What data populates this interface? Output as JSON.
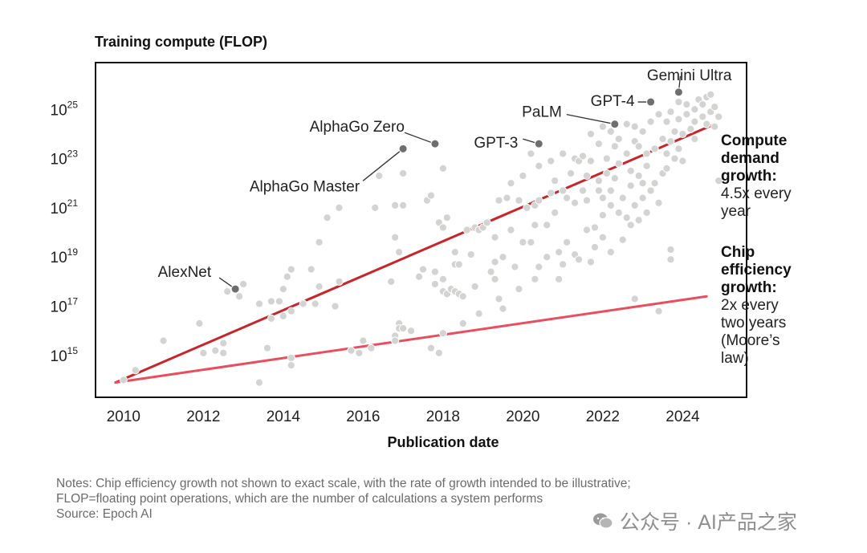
{
  "chart_data": {
    "type": "scatter",
    "title": "Training compute (FLOP)",
    "xlabel": "Publication date",
    "ylabel": "Training compute (FLOP)",
    "xlim": [
      2009.3,
      2025.6
    ],
    "ylim_log10": [
      13.3,
      26.9
    ],
    "x_ticks": [
      {
        "value": 2010,
        "label": "2010"
      },
      {
        "value": 2012,
        "label": "2012"
      },
      {
        "value": 2014,
        "label": "2014"
      },
      {
        "value": 2016,
        "label": "2016"
      },
      {
        "value": 2018,
        "label": "2018"
      },
      {
        "value": 2020,
        "label": "2020"
      },
      {
        "value": 2022,
        "label": "2022"
      },
      {
        "value": 2024,
        "label": "2024"
      }
    ],
    "y_ticks": [
      {
        "exp": 15,
        "base": "10",
        "sup": "15"
      },
      {
        "exp": 17,
        "base": "10",
        "sup": "17"
      },
      {
        "exp": 19,
        "base": "10",
        "sup": "19"
      },
      {
        "exp": 21,
        "base": "10",
        "sup": "21"
      },
      {
        "exp": 23,
        "base": "10",
        "sup": "23"
      },
      {
        "exp": 25,
        "base": "10",
        "sup": "25"
      }
    ],
    "highlighted_models": [
      {
        "name": "AlexNet",
        "x": 2012.8,
        "y_log10": 17.7,
        "label_side": "left"
      },
      {
        "name": "AlphaGo Master",
        "x": 2017.0,
        "y_log10": 23.4,
        "label_side": "left"
      },
      {
        "name": "AlphaGo Zero",
        "x": 2017.8,
        "y_log10": 23.6,
        "label_side": "top"
      },
      {
        "name": "GPT-3",
        "x": 2020.4,
        "y_log10": 23.6,
        "label_side": "left"
      },
      {
        "name": "PaLM",
        "x": 2022.3,
        "y_log10": 24.4,
        "label_side": "left"
      },
      {
        "name": "GPT-4",
        "x": 2023.2,
        "y_log10": 25.3,
        "label_side": "left"
      },
      {
        "name": "Gemini Ultra",
        "x": 2023.9,
        "y_log10": 25.7,
        "label_side": "top"
      }
    ],
    "trend_lines": [
      {
        "name": "Compute demand growth",
        "x": [
          2009.8,
          2024.8
        ],
        "y_log10": [
          13.9,
          24.4
        ],
        "color": "#c8252b"
      },
      {
        "name": "Chip efficiency growth",
        "x": [
          2009.8,
          2024.6
        ],
        "y_log10": [
          13.9,
          17.4
        ],
        "color": "#ea4d5d"
      }
    ],
    "points": [
      [
        2010.0,
        14.0
      ],
      [
        2010.3,
        14.4
      ],
      [
        2011.0,
        15.6
      ],
      [
        2011.9,
        16.3
      ],
      [
        2012.0,
        15.1
      ],
      [
        2012.3,
        15.2
      ],
      [
        2012.5,
        15.5
      ],
      [
        2012.5,
        15.1
      ],
      [
        2012.6,
        17.6
      ],
      [
        2012.9,
        17.4
      ],
      [
        2013.0,
        17.9
      ],
      [
        2013.4,
        17.1
      ],
      [
        2013.4,
        13.9
      ],
      [
        2013.6,
        15.3
      ],
      [
        2013.7,
        16.5
      ],
      [
        2013.7,
        17.2
      ],
      [
        2013.9,
        17.2
      ],
      [
        2014.0,
        16.6
      ],
      [
        2014.0,
        17.7
      ],
      [
        2014.1,
        18.2
      ],
      [
        2014.2,
        16.8
      ],
      [
        2014.2,
        14.9
      ],
      [
        2014.2,
        14.6
      ],
      [
        2014.2,
        18.5
      ],
      [
        2014.5,
        17.1
      ],
      [
        2014.7,
        18.5
      ],
      [
        2014.8,
        17.1
      ],
      [
        2014.9,
        17.8
      ],
      [
        2014.9,
        19.6
      ],
      [
        2015.1,
        20.6
      ],
      [
        2015.3,
        17.0
      ],
      [
        2015.4,
        18.0
      ],
      [
        2015.4,
        21.0
      ],
      [
        2015.7,
        15.2
      ],
      [
        2015.9,
        15.1
      ],
      [
        2016.0,
        15.6
      ],
      [
        2016.2,
        15.3
      ],
      [
        2016.3,
        21.0
      ],
      [
        2016.4,
        22.3
      ],
      [
        2016.8,
        21.1
      ],
      [
        2016.8,
        19.8
      ],
      [
        2016.8,
        15.8
      ],
      [
        2016.9,
        16.3
      ],
      [
        2016.9,
        19.2
      ],
      [
        2017.0,
        21.1
      ],
      [
        2016.9,
        16.1
      ],
      [
        2017.0,
        22.4
      ],
      [
        2017.0,
        16.1
      ],
      [
        2017.2,
        16.0
      ],
      [
        2017.5,
        18.5
      ],
      [
        2017.6,
        21.3
      ],
      [
        2017.7,
        15.3
      ],
      [
        2017.7,
        21.5
      ],
      [
        2017.8,
        17.9
      ],
      [
        2017.8,
        18.4
      ],
      [
        2017.9,
        20.4
      ],
      [
        2018.0,
        20.2
      ],
      [
        2018.0,
        22.6
      ],
      [
        2018.0,
        15.9
      ],
      [
        2018.0,
        18.1
      ],
      [
        2018.0,
        17.6
      ],
      [
        2018.1,
        17.5
      ],
      [
        2018.1,
        20.6
      ],
      [
        2018.2,
        17.7
      ],
      [
        2018.3,
        19.2
      ],
      [
        2018.3,
        18.7
      ],
      [
        2018.3,
        17.6
      ],
      [
        2018.4,
        17.5
      ],
      [
        2018.4,
        18.7
      ],
      [
        2018.5,
        17.4
      ],
      [
        2018.6,
        20.1
      ],
      [
        2018.7,
        19.1
      ],
      [
        2018.8,
        17.8
      ],
      [
        2018.8,
        20.2
      ],
      [
        2018.9,
        16.7
      ],
      [
        2018.9,
        20.1
      ],
      [
        2019.0,
        20.2
      ],
      [
        2019.1,
        20.4
      ],
      [
        2019.2,
        18.4
      ],
      [
        2019.3,
        19.8
      ],
      [
        2019.3,
        18.1
      ],
      [
        2019.3,
        18.8
      ],
      [
        2019.4,
        21.3
      ],
      [
        2019.4,
        17.3
      ],
      [
        2019.5,
        19.0
      ],
      [
        2019.6,
        21.4
      ],
      [
        2019.7,
        20.1
      ],
      [
        2019.7,
        22.0
      ],
      [
        2019.8,
        18.6
      ],
      [
        2019.9,
        21.3
      ],
      [
        2019.9,
        17.7
      ],
      [
        2020.0,
        19.6
      ],
      [
        2020.0,
        22.3
      ],
      [
        2020.1,
        21.0
      ],
      [
        2020.2,
        19.6
      ],
      [
        2020.2,
        23.2
      ],
      [
        2020.3,
        20.3
      ],
      [
        2020.3,
        21.1
      ],
      [
        2020.3,
        18.1
      ],
      [
        2020.4,
        21.3
      ],
      [
        2020.4,
        22.7
      ],
      [
        2020.4,
        18.6
      ],
      [
        2020.6,
        19.0
      ],
      [
        2020.6,
        20.3
      ],
      [
        2020.7,
        21.6
      ],
      [
        2020.7,
        22.9
      ],
      [
        2020.8,
        20.8
      ],
      [
        2020.8,
        22.1
      ],
      [
        2020.9,
        19.2
      ],
      [
        2020.9,
        18.1
      ],
      [
        2021.0,
        23.2
      ],
      [
        2021.0,
        21.7
      ],
      [
        2021.0,
        18.7
      ],
      [
        2021.1,
        19.6
      ],
      [
        2021.1,
        21.4
      ],
      [
        2021.2,
        22.4
      ],
      [
        2021.3,
        23.0
      ],
      [
        2021.3,
        19.1
      ],
      [
        2021.3,
        21.2
      ],
      [
        2021.4,
        22.9
      ],
      [
        2021.4,
        18.9
      ],
      [
        2021.5,
        21.7
      ],
      [
        2021.5,
        23.1
      ],
      [
        2021.6,
        20.1
      ],
      [
        2021.6,
        22.3
      ],
      [
        2021.6,
        21.3
      ],
      [
        2021.7,
        18.8
      ],
      [
        2021.7,
        24.0
      ],
      [
        2021.7,
        22.9
      ],
      [
        2021.8,
        20.2
      ],
      [
        2021.8,
        19.4
      ],
      [
        2021.9,
        21.7
      ],
      [
        2021.9,
        23.6
      ],
      [
        2021.9,
        22.1
      ],
      [
        2022.0,
        24.3
      ],
      [
        2022.0,
        21.4
      ],
      [
        2022.0,
        19.8
      ],
      [
        2022.0,
        20.7
      ],
      [
        2022.1,
        23.0
      ],
      [
        2022.1,
        22.4
      ],
      [
        2022.2,
        24.1
      ],
      [
        2022.2,
        21.7
      ],
      [
        2022.2,
        19.2
      ],
      [
        2022.2,
        21.1
      ],
      [
        2022.3,
        23.5
      ],
      [
        2022.3,
        22.2
      ],
      [
        2022.4,
        20.8
      ],
      [
        2022.4,
        23.8
      ],
      [
        2022.4,
        22.8
      ],
      [
        2022.5,
        21.4
      ],
      [
        2022.5,
        19.7
      ],
      [
        2022.6,
        24.4
      ],
      [
        2022.6,
        23.2
      ],
      [
        2022.6,
        20.6
      ],
      [
        2022.7,
        22.5
      ],
      [
        2022.7,
        21.9
      ],
      [
        2022.7,
        20.3
      ],
      [
        2022.8,
        23.7
      ],
      [
        2022.8,
        21.1
      ],
      [
        2022.8,
        24.3
      ],
      [
        2022.9,
        22.3
      ],
      [
        2022.9,
        20.5
      ],
      [
        2022.9,
        23.5
      ],
      [
        2023.0,
        22.0
      ],
      [
        2023.0,
        24.1
      ],
      [
        2023.0,
        21.4
      ],
      [
        2023.1,
        23.2
      ],
      [
        2023.1,
        20.8
      ],
      [
        2023.1,
        22.7
      ],
      [
        2023.2,
        24.5
      ],
      [
        2023.2,
        21.7
      ],
      [
        2023.3,
        23.4
      ],
      [
        2023.3,
        22.0
      ],
      [
        2023.4,
        24.8
      ],
      [
        2023.4,
        21.2
      ],
      [
        2023.5,
        23.8
      ],
      [
        2023.5,
        22.4
      ],
      [
        2023.6,
        24.5
      ],
      [
        2023.6,
        23.2
      ],
      [
        2023.6,
        22.6
      ],
      [
        2023.7,
        24.9
      ],
      [
        2023.7,
        23.7
      ],
      [
        2023.7,
        18.9
      ],
      [
        2023.7,
        19.3
      ],
      [
        2023.8,
        23.0
      ],
      [
        2023.8,
        24.1
      ],
      [
        2023.9,
        24.6
      ],
      [
        2023.9,
        23.4
      ],
      [
        2023.9,
        25.3
      ],
      [
        2024.0,
        24.0
      ],
      [
        2024.0,
        22.9
      ],
      [
        2024.1,
        25.2
      ],
      [
        2024.1,
        24.8
      ],
      [
        2024.2,
        24.2
      ],
      [
        2024.3,
        25.0
      ],
      [
        2024.3,
        23.8
      ],
      [
        2024.3,
        24.5
      ],
      [
        2024.4,
        25.4
      ],
      [
        2024.5,
        24.7
      ],
      [
        2024.5,
        25.2
      ],
      [
        2024.6,
        25.5
      ],
      [
        2024.6,
        24.4
      ],
      [
        2024.7,
        24.9
      ],
      [
        2024.7,
        25.6
      ],
      [
        2024.8,
        24.3
      ],
      [
        2024.8,
        25.1
      ],
      [
        2024.9,
        22.1
      ],
      [
        2024.9,
        24.7
      ],
      [
        2023.4,
        16.8
      ],
      [
        2022.8,
        17.3
      ],
      [
        2019.5,
        16.9
      ],
      [
        2018.5,
        16.3
      ],
      [
        2017.9,
        15.1
      ],
      [
        2016.8,
        15.6
      ],
      [
        2017.4,
        18.2
      ],
      [
        2016.7,
        18.0
      ]
    ],
    "annotations": [
      {
        "title_lines": [
          "Compute",
          "demand",
          "growth:"
        ],
        "body_lines": [
          "4.5x every",
          "year"
        ]
      },
      {
        "title_lines": [
          "Chip",
          "efficiency",
          "growth:"
        ],
        "body_lines": [
          "2x every",
          "two years",
          "(Moore’s",
          "law)"
        ]
      }
    ]
  },
  "notes": {
    "line1": "Notes: Chip efficiency growth not shown to exact scale, with the rate of growth intended to be illustrative;",
    "line2": "FLOP=floating point operations, which are the number of calculations a system performs",
    "line3": "Source: Epoch AI"
  },
  "watermark": {
    "text": "公众号 · AI产品之家",
    "icon": "wechat-icon"
  },
  "colors": {
    "dot": "#d3d3d1",
    "highlight_dot": "#6e6e6e",
    "compute_line": "#c8252b",
    "chip_line": "#ea4d5d",
    "frame": "#111111"
  }
}
